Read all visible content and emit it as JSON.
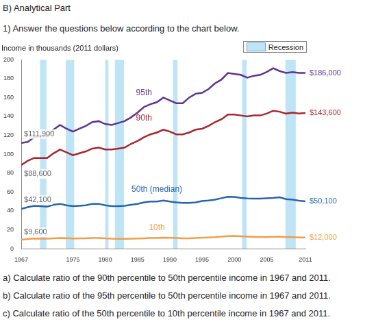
{
  "header": "B) Analytical Part",
  "instruction": "1) Answer the questions below according to the chart below.",
  "questions": [
    "a) Calculate ratio of the 90th percentile to 50th percentile income in 1967 and 2011.",
    "b) Calculate ratio of the 95th percentile to 50th percentile income in 1967 and 2011.",
    "c) Calculate ratio of the 50th percentile to 10th percentile income in 1967 and 2011."
  ],
  "chart_data": {
    "type": "line",
    "title": "Income in thousands (2011 dollars)",
    "x": [
      1967,
      1968,
      1969,
      1970,
      1971,
      1972,
      1973,
      1974,
      1975,
      1976,
      1977,
      1978,
      1979,
      1980,
      1981,
      1982,
      1983,
      1984,
      1985,
      1986,
      1987,
      1988,
      1989,
      1990,
      1991,
      1992,
      1993,
      1994,
      1995,
      1996,
      1997,
      1998,
      1999,
      2000,
      2001,
      2002,
      2003,
      2004,
      2005,
      2006,
      2007,
      2008,
      2009,
      2010,
      2011
    ],
    "series": [
      {
        "name": "95th",
        "color": "#5e3391",
        "values": [
          111.9,
          113,
          118,
          119,
          119,
          126,
          131,
          127,
          124,
          127,
          130,
          134,
          135,
          132,
          131,
          133,
          135,
          139,
          144,
          150,
          153,
          155,
          160,
          157,
          154,
          154,
          160,
          164,
          165,
          169,
          175,
          179,
          186,
          185,
          184,
          181,
          183,
          184,
          187,
          191,
          188,
          186,
          187,
          186,
          186.0
        ],
        "value_labels": [
          "$111,900",
          null,
          null,
          null,
          null,
          null,
          null,
          null,
          null,
          null,
          null,
          null,
          null,
          null,
          null,
          null,
          null,
          null,
          null,
          null,
          null,
          null,
          null,
          null,
          null,
          null,
          null,
          null,
          null,
          null,
          null,
          null,
          null,
          null,
          null,
          null,
          null,
          null,
          null,
          null,
          null,
          null,
          null,
          null,
          "$186,000"
        ]
      },
      {
        "name": "90th",
        "color": "#a8262b",
        "values": [
          88.6,
          93,
          96,
          96,
          96,
          101,
          105,
          102,
          99,
          101,
          103,
          106,
          107,
          105,
          105,
          106,
          107,
          111,
          114,
          118,
          121,
          123,
          126,
          124,
          121,
          121,
          123,
          126,
          127,
          130,
          134,
          137,
          142,
          142,
          141,
          140,
          141,
          141,
          143,
          146,
          145,
          143,
          144,
          143,
          143.6
        ],
        "value_labels": [
          "$88,600",
          null,
          null,
          null,
          null,
          null,
          null,
          null,
          null,
          null,
          null,
          null,
          null,
          null,
          null,
          null,
          null,
          null,
          null,
          null,
          null,
          null,
          null,
          null,
          null,
          null,
          null,
          null,
          null,
          null,
          null,
          null,
          null,
          null,
          null,
          null,
          null,
          null,
          null,
          null,
          null,
          null,
          null,
          null,
          "$143,600"
        ]
      },
      {
        "name": "50th (median)",
        "color": "#2565ad",
        "values": [
          42.1,
          44,
          45.5,
          45,
          44.5,
          46.5,
          47.5,
          46,
          45,
          45.5,
          46,
          47.5,
          47.5,
          46,
          45,
          45,
          45.5,
          46.5,
          47.5,
          49,
          50,
          50,
          51,
          50,
          49,
          48.5,
          48.5,
          49,
          50.5,
          51,
          52,
          53.5,
          55,
          54.8,
          53.8,
          53.2,
          53,
          53,
          53.4,
          53.8,
          54.5,
          52.5,
          52,
          50.8,
          50.1
        ],
        "value_labels": [
          "$42,100",
          null,
          null,
          null,
          null,
          null,
          null,
          null,
          null,
          null,
          null,
          null,
          null,
          null,
          null,
          null,
          null,
          null,
          null,
          null,
          null,
          null,
          null,
          null,
          null,
          null,
          null,
          null,
          null,
          null,
          null,
          null,
          null,
          null,
          null,
          null,
          null,
          null,
          null,
          null,
          null,
          null,
          null,
          null,
          "$50,100"
        ]
      },
      {
        "name": "10th",
        "color": "#f29d48",
        "values": [
          9.6,
          10.3,
          10.8,
          10.6,
          10.6,
          11.0,
          11.3,
          11.2,
          10.8,
          11.0,
          11.0,
          11.3,
          11.3,
          11.0,
          10.6,
          10.4,
          10.4,
          10.7,
          10.9,
          11.1,
          11.3,
          11.4,
          11.7,
          11.6,
          11.3,
          11.0,
          11.0,
          11.3,
          11.8,
          12.0,
          12.3,
          12.8,
          13.4,
          13.5,
          13.1,
          12.8,
          12.5,
          12.4,
          12.5,
          12.7,
          12.8,
          12.3,
          12.2,
          12.0,
          12.0
        ],
        "value_labels": [
          "$9,600",
          null,
          null,
          null,
          null,
          null,
          null,
          null,
          null,
          null,
          null,
          null,
          null,
          null,
          null,
          null,
          null,
          null,
          null,
          null,
          null,
          null,
          null,
          null,
          null,
          null,
          null,
          null,
          null,
          null,
          null,
          null,
          null,
          null,
          null,
          null,
          null,
          null,
          null,
          null,
          null,
          null,
          null,
          null,
          "$12,000"
        ]
      }
    ],
    "annotations": [
      {
        "series": 0,
        "x": 1986,
        "y": 165
      },
      {
        "series": 1,
        "x": 1986,
        "y": 138
      },
      {
        "series": 2,
        "x": 1988,
        "y": 63
      },
      {
        "series": 3,
        "x": 1988,
        "y": 22
      }
    ],
    "recession_label": "Recession",
    "recession_color": "#bfe4f5",
    "recessions": [
      [
        1969.9,
        1970.9
      ],
      [
        1973.9,
        1975.2
      ],
      [
        1980.0,
        1980.5
      ],
      [
        1981.5,
        1982.9
      ],
      [
        1990.5,
        1991.2
      ],
      [
        2001.2,
        2001.9
      ],
      [
        2007.9,
        2009.5
      ]
    ],
    "xlim": [
      1967,
      2011
    ],
    "xticks": [
      1967,
      1975,
      1980,
      1985,
      1990,
      1995,
      2000,
      2005,
      2011
    ],
    "ylim": [
      0,
      200
    ],
    "yticks": [
      0,
      20,
      40,
      60,
      80,
      100,
      120,
      140,
      160,
      180,
      200
    ],
    "grid": false,
    "legend": "top-right",
    "data_labels": true
  }
}
